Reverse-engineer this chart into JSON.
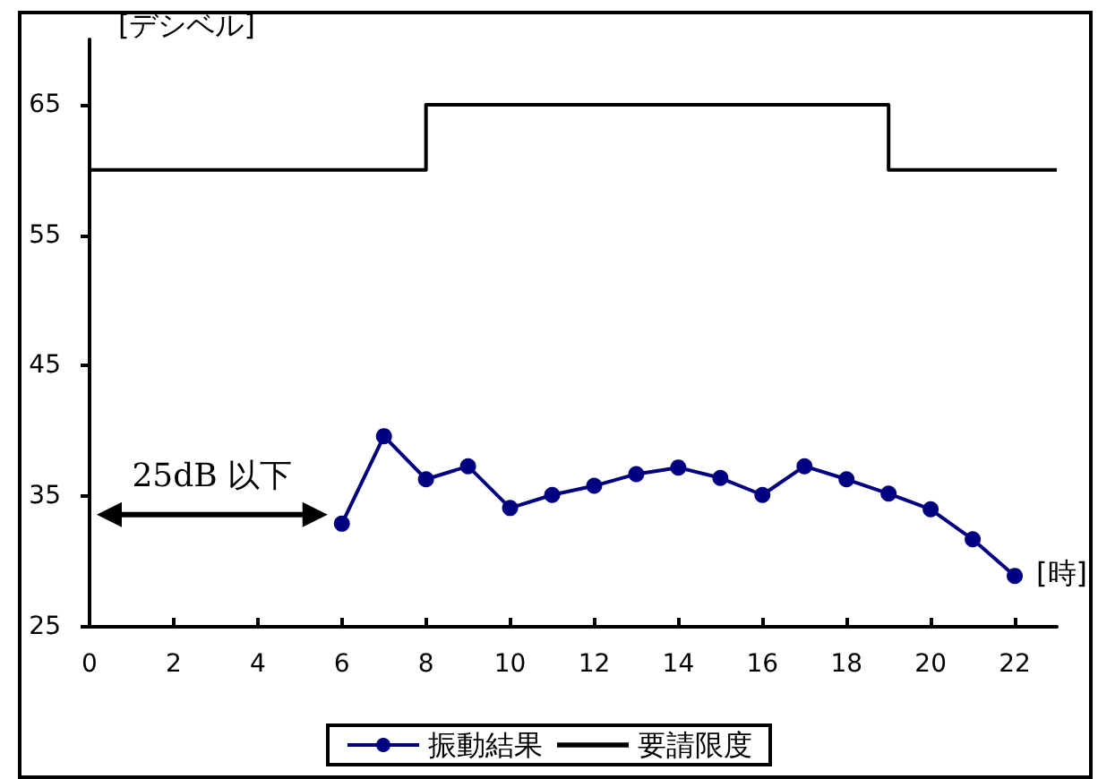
{
  "chart_data": {
    "type": "line",
    "ylabel": "[デシベル]",
    "xlabel": "[時]",
    "x": [
      6,
      7,
      8,
      9,
      10,
      11,
      12,
      13,
      14,
      15,
      16,
      17,
      18,
      19,
      20,
      21,
      22
    ],
    "series": [
      {
        "name": "振動結果",
        "color": "#000080",
        "marker": "circle",
        "values": [
          32.9,
          39.6,
          36.3,
          37.3,
          34.1,
          35.1,
          35.8,
          36.7,
          37.2,
          36.4,
          35.1,
          37.3,
          36.3,
          35.2,
          34.0,
          31.7,
          28.9
        ]
      },
      {
        "name": "要請限度",
        "type": "step",
        "color": "#000000",
        "marker": "none",
        "x": [
          0,
          8,
          19,
          23
        ],
        "values": [
          60,
          65,
          60,
          60
        ]
      }
    ],
    "xlim": [
      0,
      23
    ],
    "xticks": [
      0,
      2,
      4,
      6,
      8,
      10,
      12,
      14,
      16,
      18,
      20,
      22
    ],
    "ylim": [
      25,
      70
    ],
    "yticks": [
      25,
      35,
      45,
      55,
      65
    ],
    "grid": false,
    "legend": "bottom",
    "annotations": [
      "25dB 以下"
    ]
  }
}
